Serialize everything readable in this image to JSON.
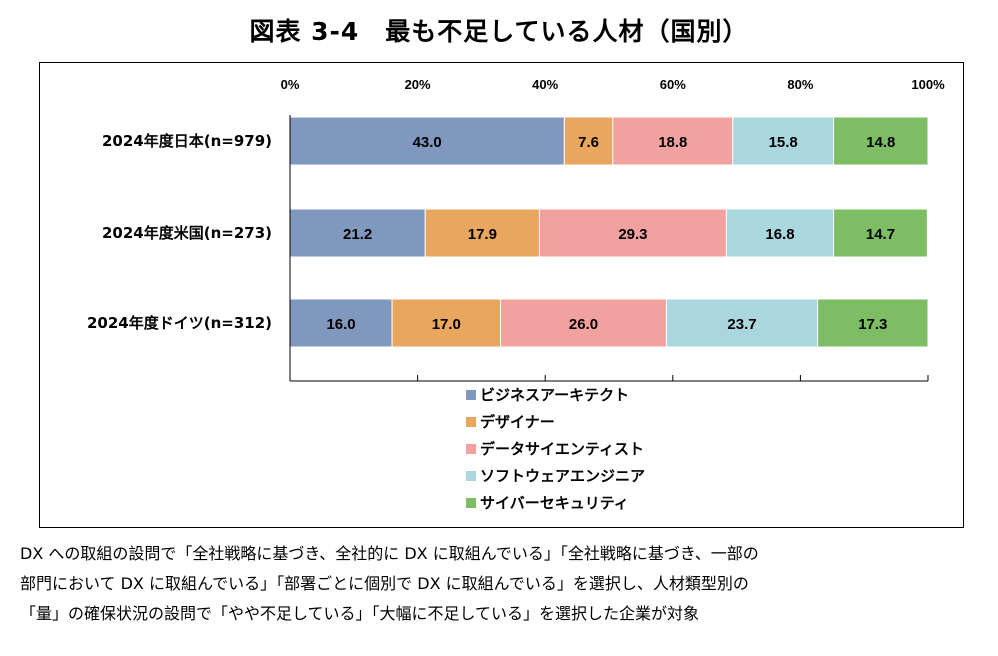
{
  "title": "図表 3-4　最も不足している人材（国別）",
  "note": [
    "DX への取組の設問で「全社戦略に基づき、全社的に DX に取組んでいる」「全社戦略に基づき、一部の",
    "部門において DX に取組んでいる」「部署ごとに個別で DX に取組んでいる」を選択し、人材類型別の",
    "「量」の確保状況の設問で「やや不足している」「大幅に不足している」を選択した企業が対象"
  ],
  "chart_data": {
    "type": "bar",
    "orientation": "horizontal",
    "stacked": "percent",
    "title": "図表 3-4　最も不足している人材（国別）",
    "categories": [
      "2024年度日本(n=979)",
      "2024年度米国(n=273)",
      "2024年度ドイツ(n=312)"
    ],
    "xlim": [
      0,
      100
    ],
    "xticks": [
      "0%",
      "20%",
      "40%",
      "60%",
      "80%",
      "100%"
    ],
    "legend_position": "bottom",
    "series": [
      {
        "name": "ビジネスアーキテクト",
        "color": "#8098BE",
        "values": [
          43.0,
          21.2,
          16.0
        ]
      },
      {
        "name": "デザイナー",
        "color": "#E8A65E",
        "values": [
          7.6,
          17.9,
          17.0
        ]
      },
      {
        "name": "データサイエンティスト",
        "color": "#F2A1A1",
        "values": [
          18.8,
          29.3,
          26.0
        ]
      },
      {
        "name": "ソフトウェアエンジニア",
        "color": "#A9D7DD",
        "values": [
          15.8,
          16.8,
          23.7
        ]
      },
      {
        "name": "サイバーセキュリティ",
        "color": "#7DBE64",
        "values": [
          14.8,
          14.7,
          17.3
        ]
      }
    ]
  }
}
